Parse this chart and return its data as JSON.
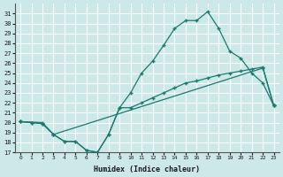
{
  "xlabel": "Humidex (Indice chaleur)",
  "ylabel": "",
  "bg_color": "#cce8e8",
  "grid_color": "#ffffff",
  "line_color": "#1a7a6e",
  "xlim": [
    -0.5,
    23.5
  ],
  "ylim": [
    17,
    32
  ],
  "xticks": [
    0,
    1,
    2,
    3,
    4,
    5,
    6,
    7,
    8,
    9,
    10,
    11,
    12,
    13,
    14,
    15,
    16,
    17,
    18,
    19,
    20,
    21,
    22,
    23
  ],
  "yticks": [
    17,
    18,
    19,
    20,
    21,
    22,
    23,
    24,
    25,
    26,
    27,
    28,
    29,
    30,
    31
  ],
  "line1_x": [
    0,
    1,
    2,
    3,
    4,
    5,
    6,
    7,
    8,
    9,
    10,
    11,
    12,
    13,
    14,
    15,
    16,
    17,
    18,
    19,
    20,
    21,
    22,
    23
  ],
  "line1_y": [
    20.1,
    20.0,
    19.9,
    18.8,
    18.1,
    18.1,
    17.2,
    17.0,
    18.8,
    21.5,
    21.5,
    22.0,
    22.5,
    23.0,
    23.5,
    24.0,
    24.2,
    24.5,
    24.8,
    25.0,
    25.2,
    25.4,
    25.6,
    21.7
  ],
  "line2_x": [
    0,
    1,
    2,
    3,
    4,
    5,
    6,
    7,
    8,
    9,
    10,
    11,
    12,
    13,
    14,
    15,
    16,
    17,
    18,
    19,
    20,
    21,
    22,
    23
  ],
  "line2_y": [
    20.1,
    20.0,
    19.9,
    18.8,
    18.1,
    18.1,
    17.2,
    17.0,
    18.8,
    21.5,
    23.0,
    25.0,
    26.2,
    27.8,
    29.5,
    30.3,
    30.3,
    31.2,
    29.5,
    27.2,
    26.5,
    25.0,
    24.0,
    21.7
  ],
  "line3_x": [
    0,
    2,
    3,
    22,
    23
  ],
  "line3_y": [
    20.1,
    20.0,
    18.8,
    25.5,
    21.7
  ]
}
